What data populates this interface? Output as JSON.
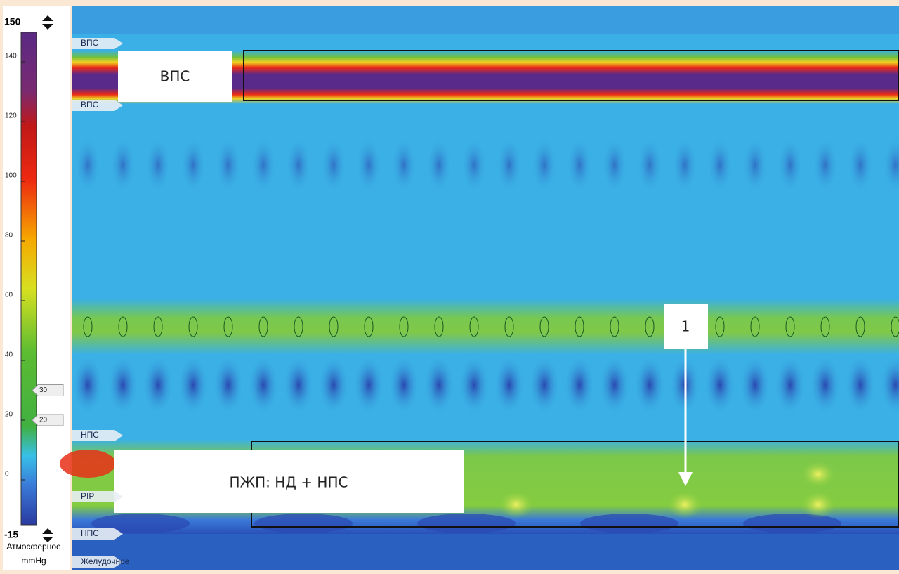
{
  "scale": {
    "max": "150",
    "min": "-15",
    "ticks": [
      140,
      120,
      100,
      80,
      60,
      40,
      20,
      0
    ],
    "markers": [
      30,
      20
    ],
    "label": "Атмосферное",
    "unit": "mmHg"
  },
  "plot": {
    "sensor_labels": [
      "ВПС",
      "ВПС",
      "НПС",
      "PIP",
      "НПС",
      "Желудочное"
    ]
  },
  "annotations": {
    "upper_box": "ВПС",
    "lower_box": "ПЖП: НД + НПС",
    "marker": "1"
  }
}
